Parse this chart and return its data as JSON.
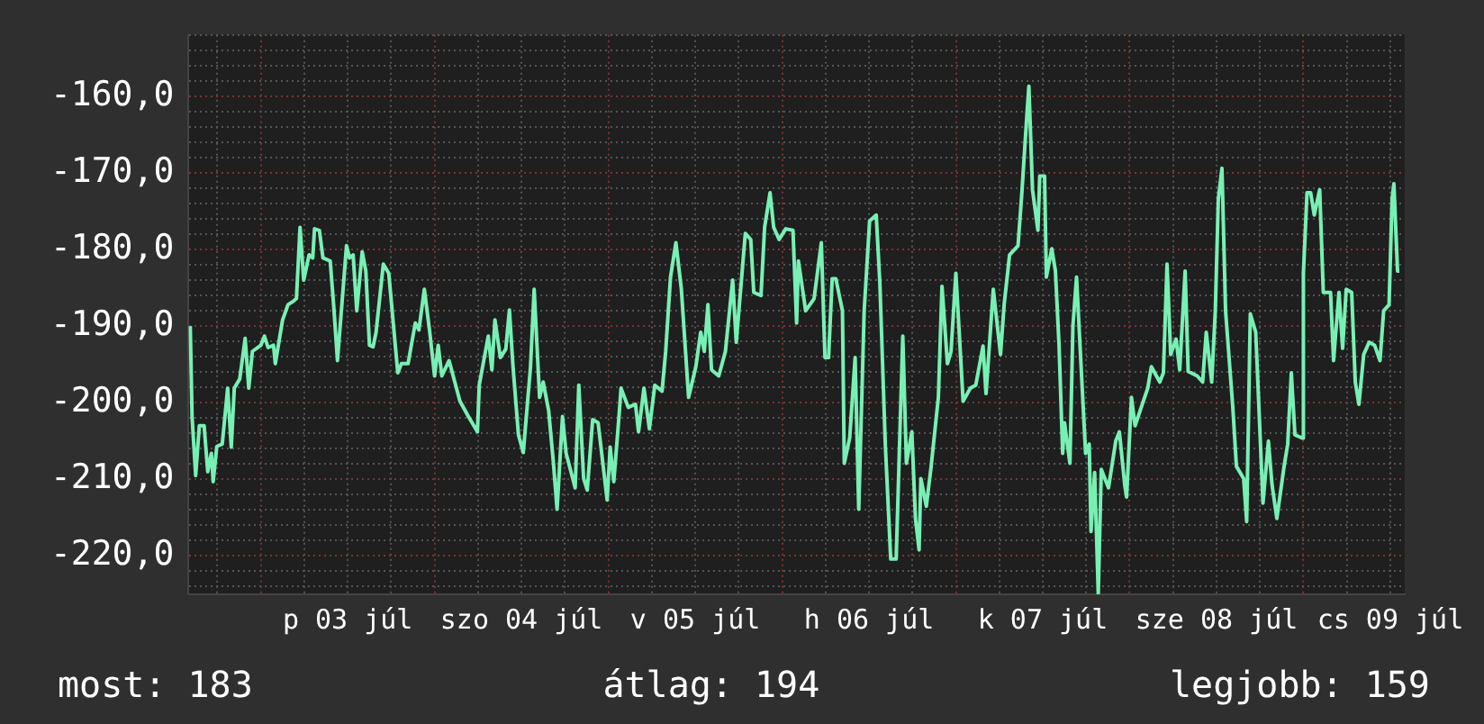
{
  "chart_data": {
    "type": "line",
    "color": "#78f0b4",
    "grid": true,
    "annotations": [
      "most: 183",
      "átlag: 194",
      "legjobb: 159"
    ],
    "xlim": [
      "--07-02T14:00",
      "--07-09T14:00"
    ],
    "xticks": [
      {
        "value": "--07-02T18:00",
        "label": null
      },
      {
        "value": "--07-03T00:00",
        "label": null
      },
      {
        "value": "--07-03T06:00",
        "label": null
      },
      {
        "value": "--07-03T12:00",
        "label": "p 03 júl"
      },
      {
        "value": "--07-03T18:00",
        "label": null
      },
      {
        "value": "--07-04T00:00",
        "label": null
      },
      {
        "value": "--07-04T06:00",
        "label": null
      },
      {
        "value": "--07-04T12:00",
        "label": "szo 04 júl"
      },
      {
        "value": "--07-04T18:00",
        "label": null
      },
      {
        "value": "--07-05T00:00",
        "label": null
      },
      {
        "value": "--07-05T06:00",
        "label": null
      },
      {
        "value": "--07-05T12:00",
        "label": "v 05 júl"
      },
      {
        "value": "--07-05T18:00",
        "label": null
      },
      {
        "value": "--07-06T00:00",
        "label": null
      },
      {
        "value": "--07-06T06:00",
        "label": null
      },
      {
        "value": "--07-06T12:00",
        "label": "h 06 júl"
      },
      {
        "value": "--07-06T18:00",
        "label": null
      },
      {
        "value": "--07-07T00:00",
        "label": null
      },
      {
        "value": "--07-07T06:00",
        "label": null
      },
      {
        "value": "--07-07T12:00",
        "label": "k 07 júl"
      },
      {
        "value": "--07-07T18:00",
        "label": null
      },
      {
        "value": "--07-08T00:00",
        "label": null
      },
      {
        "value": "--07-08T06:00",
        "label": null
      },
      {
        "value": "--07-08T12:00",
        "label": "sze 08 júl"
      },
      {
        "value": "--07-08T18:00",
        "label": null
      },
      {
        "value": "--07-09T00:00",
        "label": null
      },
      {
        "value": "--07-09T06:00",
        "label": null
      },
      {
        "value": "--07-09T12:00",
        "label": "cs 09 júl"
      }
    ],
    "ylim": [
      -225,
      -152
    ],
    "yticks": [
      {
        "value": -224,
        "label": null
      },
      {
        "value": -222,
        "label": null
      },
      {
        "value": -220,
        "label": "-220,0"
      },
      {
        "value": -218,
        "label": null
      },
      {
        "value": -216,
        "label": null
      },
      {
        "value": -214,
        "label": null
      },
      {
        "value": -212,
        "label": null
      },
      {
        "value": -210,
        "label": "-210,0"
      },
      {
        "value": -208,
        "label": null
      },
      {
        "value": -206,
        "label": null
      },
      {
        "value": -204,
        "label": null
      },
      {
        "value": -202,
        "label": null
      },
      {
        "value": -200,
        "label": "-200,0"
      },
      {
        "value": -198,
        "label": null
      },
      {
        "value": -196,
        "label": null
      },
      {
        "value": -194,
        "label": null
      },
      {
        "value": -192,
        "label": null
      },
      {
        "value": -190,
        "label": "-190,0"
      },
      {
        "value": -188,
        "label": null
      },
      {
        "value": -186,
        "label": null
      },
      {
        "value": -184,
        "label": null
      },
      {
        "value": -182,
        "label": null
      },
      {
        "value": -180,
        "label": "-180,0"
      },
      {
        "value": -178,
        "label": null
      },
      {
        "value": -176,
        "label": null
      },
      {
        "value": -174,
        "label": null
      },
      {
        "value": -172,
        "label": null
      },
      {
        "value": -170,
        "label": "-170,0"
      },
      {
        "value": -168,
        "label": null
      },
      {
        "value": -166,
        "label": null
      },
      {
        "value": -164,
        "label": null
      },
      {
        "value": -162,
        "label": null
      },
      {
        "value": -160,
        "label": "-160,0"
      },
      {
        "value": -158,
        "label": null
      },
      {
        "value": -156,
        "label": null
      },
      {
        "value": -154,
        "label": null
      },
      {
        "value": -152,
        "label": null
      }
    ],
    "x": [
      "--07-02T14:15",
      "--07-02T14:30",
      "--07-02T15:00",
      "--07-02T15:30",
      "--07-02T16:10",
      "--07-02T16:40",
      "--07-02T17:10",
      "--07-02T17:25",
      "--07-02T17:55",
      "--07-02T18:40",
      "--07-02T19:25",
      "--07-02T19:55",
      "--07-02T20:20",
      "--07-02T21:05",
      "--07-02T21:50",
      "--07-02T22:20",
      "--07-02T22:50",
      "--07-03T00:00",
      "--07-03T00:30",
      "--07-03T01:00",
      "--07-03T01:45",
      "--07-03T02:00",
      "--07-03T03:00",
      "--07-03T03:45",
      "--07-03T04:25",
      "--07-03T04:55",
      "--07-03T05:25",
      "--07-03T05:55",
      "--07-03T06:40",
      "--07-03T07:10",
      "--07-03T07:25",
      "--07-03T08:05",
      "--07-03T08:35",
      "--07-03T09:35",
      "--07-03T10:05",
      "--07-03T10:35",
      "--07-03T11:50",
      "--07-03T12:15",
      "--07-03T12:45",
      "--07-03T13:15",
      "--07-03T14:00",
      "--07-03T14:30",
      "--07-03T15:00",
      "--07-03T15:30",
      "--07-03T15:55",
      "--07-03T16:55",
      "--07-03T17:40",
      "--07-03T18:55",
      "--07-03T19:25",
      "--07-03T20:20",
      "--07-03T21:20",
      "--07-03T21:50",
      "--07-03T22:35",
      "--07-03T23:20",
      "--07-04T00:00",
      "--07-04T00:30",
      "--07-04T01:00",
      "--07-04T02:00",
      "--07-04T03:30",
      "--07-04T04:40",
      "--07-04T05:55",
      "--07-04T06:10",
      "--07-04T07:25",
      "--07-04T07:55",
      "--07-04T08:20",
      "--07-04T09:05",
      "--07-04T09:50",
      "--07-04T10:20",
      "--07-04T10:50",
      "--07-04T11:35",
      "--07-04T12:15",
      "--07-04T13:15",
      "--07-04T13:45",
      "--07-04T14:30",
      "--07-04T15:00",
      "--07-04T15:45",
      "--07-04T16:25",
      "--07-04T16:55",
      "--07-04T17:40",
      "--07-04T18:10",
      "--07-04T19:25",
      "--07-04T19:55",
      "--07-04T20:35",
      "--07-04T21:05",
      "--07-04T21:50",
      "--07-04T22:35",
      "--07-04T23:50",
      "--07-05T00:15",
      "--07-05T00:45",
      "--07-05T01:30",
      "--07-05T01:45",
      "--07-05T02:45",
      "--07-05T03:45",
      "--07-05T04:10",
      "--07-05T04:55",
      "--07-05T05:40",
      "--07-05T06:25",
      "--07-05T07:25",
      "--07-05T07:55",
      "--07-05T08:35",
      "--07-05T09:20",
      "--07-05T10:05",
      "--07-05T11:05",
      "--07-05T12:05",
      "--07-05T12:45",
      "--07-05T13:15",
      "--07-05T13:45",
      "--07-05T14:15",
      "--07-05T15:15",
      "--07-05T16:10",
      "--07-05T17:10",
      "--07-05T17:40",
      "--07-05T18:25",
      "--07-05T18:55",
      "--07-05T19:40",
      "--07-05T20:05",
      "--07-05T21:05",
      "--07-05T21:35",
      "--07-05T22:20",
      "--07-05T22:50",
      "--07-05T23:35",
      "--07-06T00:30",
      "--07-06T01:30",
      "--07-06T02:00",
      "--07-06T02:15",
      "--07-06T03:15",
      "--07-06T04:25",
      "--07-06T05:25",
      "--07-06T05:55",
      "--07-06T06:25",
      "--07-06T06:55",
      "--07-06T07:25",
      "--07-06T08:20",
      "--07-06T08:35",
      "--07-06T09:20",
      "--07-06T10:05",
      "--07-06T10:35",
      "--07-06T11:20",
      "--07-06T12:05",
      "--07-06T13:00",
      "--07-06T13:30",
      "--07-06T14:15",
      "--07-06T15:00",
      "--07-06T15:45",
      "--07-06T16:40",
      "--07-06T17:10",
      "--07-06T17:55",
      "--07-06T18:25",
      "--07-06T18:55",
      "--07-06T19:10",
      "--07-06T19:55",
      "--07-06T20:35",
      "--07-06T21:35",
      "--07-06T22:05",
      "--07-06T22:50",
      "--07-06T23:20",
      "--07-07T00:00",
      "--07-07T01:00",
      "--07-07T02:00",
      "--07-07T02:45",
      "--07-07T03:45",
      "--07-07T04:10",
      "--07-07T05:10",
      "--07-07T06:10",
      "--07-07T06:40",
      "--07-07T07:25",
      "--07-07T08:35",
      "--07-07T09:05",
      "--07-07T09:50",
      "--07-07T10:05",
      "--07-07T10:35",
      "--07-07T11:20",
      "--07-07T11:35",
      "--07-07T12:15",
      "--07-07T12:30",
      "--07-07T13:15",
      "--07-07T13:45",
      "--07-07T14:15",
      "--07-07T14:45",
      "--07-07T15:00",
      "--07-07T15:45",
      "--07-07T16:10",
      "--07-07T16:40",
      "--07-07T17:10",
      "--07-07T17:55",
      "--07-07T18:25",
      "--07-07T18:40",
      "--07-07T19:10",
      "--07-07T19:40",
      "--07-07T20:05",
      "--07-07T21:05",
      "--07-07T22:05",
      "--07-07T22:35",
      "--07-07T23:20",
      "--07-07T23:35",
      "--07-08T00:15",
      "--07-08T00:45",
      "--07-08T01:45",
      "--07-08T02:30",
      "--07-08T03:00",
      "--07-08T04:10",
      "--07-08T04:40",
      "--07-08T05:10",
      "--07-08T05:40",
      "--07-08T06:25",
      "--07-08T06:55",
      "--07-08T07:40",
      "--07-08T08:05",
      "--07-08T09:20",
      "--07-08T10:05",
      "--07-08T10:35",
      "--07-08T11:20",
      "--07-08T11:50",
      "--07-08T12:15",
      "--07-08T12:45",
      "--07-08T13:15",
      "--07-08T14:15",
      "--07-08T14:45",
      "--07-08T15:45",
      "--07-08T16:10",
      "--07-08T16:40",
      "--07-08T17:25",
      "--07-08T18:25",
      "--07-08T19:10",
      "--07-08T19:40",
      "--07-08T20:20",
      "--07-08T21:20",
      "--07-08T21:50",
      "--07-08T22:20",
      "--07-08T22:50",
      "--07-08T23:50",
      "--07-09T00:00",
      "--07-09T00:30",
      "--07-09T01:00",
      "--07-09T01:30",
      "--07-09T02:15",
      "--07-09T02:45",
      "--07-09T03:45",
      "--07-09T04:10",
      "--07-09T04:55",
      "--07-09T05:25",
      "--07-09T05:55",
      "--07-09T06:40",
      "--07-09T07:10",
      "--07-09T07:40",
      "--07-09T08:20",
      "--07-09T09:05",
      "--07-09T09:50",
      "--07-09T10:35",
      "--07-09T11:05",
      "--07-09T11:50",
      "--07-09T12:15",
      "--07-09T12:30",
      "--07-09T13:00",
      "--07-09T13:15"
    ],
    "values": [
      -190.0,
      -201.8,
      -209.5,
      -203.0,
      -203.0,
      -209.0,
      -206.6,
      -210.3,
      -205.7,
      -205.4,
      -198.1,
      -205.8,
      -198.1,
      -196.9,
      -191.6,
      -198.1,
      -193.3,
      -192.5,
      -191.3,
      -192.8,
      -192.5,
      -194.9,
      -189.2,
      -187.2,
      -186.8,
      -186.4,
      -177.1,
      -184.0,
      -180.7,
      -181.1,
      -177.3,
      -177.5,
      -181.1,
      -181.5,
      -187.6,
      -194.5,
      -179.5,
      -181.1,
      -180.7,
      -188.0,
      -180.3,
      -182.8,
      -192.5,
      -192.7,
      -190.8,
      -181.9,
      -183.1,
      -196.1,
      -194.9,
      -194.9,
      -189.6,
      -190.5,
      -185.2,
      -190.8,
      -196.5,
      -192.5,
      -196.5,
      -194.5,
      -199.8,
      -201.8,
      -203.8,
      -197.7,
      -191.3,
      -195.7,
      -189.2,
      -194.1,
      -193.0,
      -187.9,
      -195.3,
      -204.2,
      -206.5,
      -195.3,
      -185.2,
      -199.3,
      -197.3,
      -201.0,
      -207.9,
      -213.9,
      -201.8,
      -206.6,
      -211.1,
      -197.7,
      -209.9,
      -211.4,
      -202.2,
      -202.6,
      -212.7,
      -205.8,
      -210.3,
      -201.4,
      -198.1,
      -200.6,
      -200.2,
      -203.8,
      -198.1,
      -203.4,
      -197.7,
      -198.5,
      -193.3,
      -183.6,
      -179.1,
      -185.2,
      -199.3,
      -195.3,
      -190.8,
      -193.3,
      -187.2,
      -195.7,
      -196.5,
      -193.3,
      -184.0,
      -192.1,
      -183.6,
      -177.9,
      -178.7,
      -185.6,
      -186.0,
      -177.1,
      -172.6,
      -177.1,
      -178.7,
      -177.3,
      -177.5,
      -189.6,
      -181.5,
      -188.0,
      -186.4,
      -179.1,
      -194.1,
      -194.1,
      -183.8,
      -183.8,
      -188.0,
      -207.9,
      -204.6,
      -194.1,
      -213.9,
      -188.0,
      -176.3,
      -175.5,
      -184.4,
      -205.4,
      -220.4,
      -220.4,
      -191.3,
      -207.9,
      -203.8,
      -215.1,
      -219.2,
      -209.9,
      -213.5,
      -208.3,
      -199.3,
      -184.8,
      -194.9,
      -193.3,
      -183.1,
      -199.8,
      -198.1,
      -197.7,
      -192.6,
      -198.8,
      -185.2,
      -193.7,
      -187.2,
      -180.7,
      -179.5,
      -173.0,
      -162.1,
      -158.7,
      -172.2,
      -177.5,
      -170.4,
      -170.4,
      -183.6,
      -179.9,
      -182.8,
      -192.5,
      -206.6,
      -202.6,
      -207.9,
      -190.0,
      -183.6,
      -192.9,
      -206.6,
      -205.4,
      -216.8,
      -209.1,
      -224.9,
      -208.7,
      -211.1,
      -205.0,
      -203.8,
      -210.8,
      -212.3,
      -199.3,
      -203.0,
      -200.2,
      -198.1,
      -195.3,
      -197.3,
      -196.1,
      -181.9,
      -193.7,
      -191.7,
      -195.7,
      -182.8,
      -195.9,
      -196.5,
      -197.3,
      -190.8,
      -197.3,
      -188.0,
      -173.4,
      -169.4,
      -188.0,
      -200.6,
      -208.3,
      -209.9,
      -215.5,
      -188.4,
      -190.8,
      -213.1,
      -205.0,
      -210.7,
      -215.1,
      -208.3,
      -205.4,
      -196.1,
      -204.2,
      -204.6,
      -183.1,
      -172.6,
      -172.6,
      -175.5,
      -172.2,
      -185.6,
      -185.6,
      -194.5,
      -185.6,
      -192.9,
      -185.2,
      -185.6,
      -197.3,
      -200.2,
      -193.7,
      -192.1,
      -192.5,
      -194.5,
      -188.0,
      -187.2,
      -173.4,
      -171.4,
      -182.8,
      -182.8
    ]
  }
}
